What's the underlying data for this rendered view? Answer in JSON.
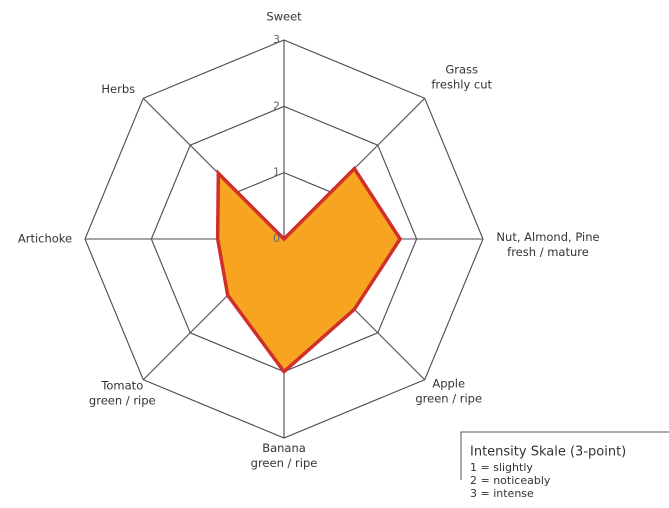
{
  "chart_data": {
    "type": "radar",
    "categories": [
      [
        "Sweet"
      ],
      [
        "Grass",
        "freshly cut"
      ],
      [
        "Nut, Almond, Pine",
        "fresh / mature"
      ],
      [
        "Apple",
        "green / ripe"
      ],
      [
        "Banana",
        "green / ripe"
      ],
      [
        "Tomato",
        "green / ripe"
      ],
      [
        "Artichoke"
      ],
      [
        "Herbs"
      ]
    ],
    "values": [
      0,
      1.5,
      1.75,
      1.5,
      2,
      1.2,
      1,
      1.4
    ],
    "fill_color": "#f7a520",
    "line_color": "#d12f2a",
    "rlim": [
      0,
      3
    ],
    "rticks": [
      0,
      1,
      2,
      3
    ],
    "legend": {
      "title": "Intensity Skale (3-point)",
      "items": [
        "1 = slightly",
        "2 = noticeably",
        "3 = intense"
      ]
    }
  }
}
